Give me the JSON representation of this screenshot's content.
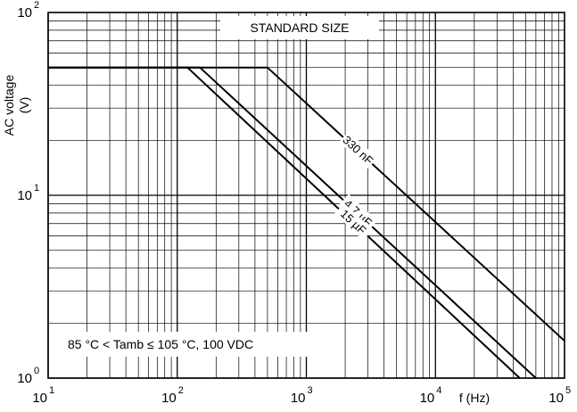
{
  "chart_data": {
    "type": "line",
    "title": "STANDARD SIZE",
    "annotation": "85 °C < Tamb  ≤ 105 °C, 100 VDC",
    "xlabel": "f (Hz)",
    "ylabel": "AC voltage",
    "ylabel_unit": "(V)",
    "x_scale": "log",
    "y_scale": "log",
    "xlim": [
      10,
      100000
    ],
    "ylim": [
      1,
      100
    ],
    "grid": true,
    "x_ticks": [
      {
        "base": "10",
        "exp": "1"
      },
      {
        "base": "10",
        "exp": "2"
      },
      {
        "base": "10",
        "exp": "3"
      },
      {
        "base": "10",
        "exp": "4"
      },
      {
        "base": "10",
        "exp": "5"
      }
    ],
    "y_ticks": [
      {
        "base": "10",
        "exp": "0"
      },
      {
        "base": "10",
        "exp": "1"
      },
      {
        "base": "10",
        "exp": "2"
      }
    ],
    "series": [
      {
        "name": "330 nF",
        "x": [
          10,
          500,
          100000
        ],
        "y": [
          50,
          50,
          1.6
        ]
      },
      {
        "name": "4.7 µF",
        "x": [
          10,
          150,
          60000
        ],
        "y": [
          50,
          50,
          1
        ]
      },
      {
        "name": "15 µF",
        "x": [
          10,
          120,
          45000
        ],
        "y": [
          50,
          50,
          1
        ]
      }
    ]
  }
}
